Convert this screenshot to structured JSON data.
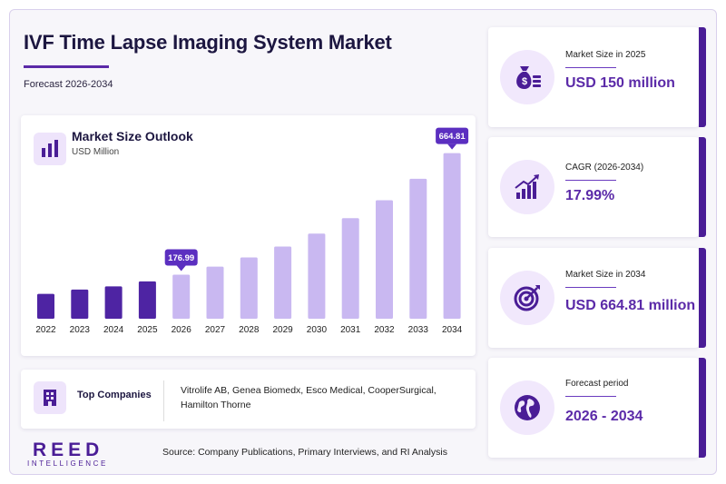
{
  "header": {
    "title": "IVF Time Lapse Imaging System Market",
    "subtitle": "Forecast 2026-2034"
  },
  "chart_data": {
    "type": "bar",
    "title": "Market Size Outlook",
    "unit": "USD Million",
    "categories": [
      "2022",
      "2023",
      "2024",
      "2025",
      "2026",
      "2027",
      "2028",
      "2029",
      "2030",
      "2031",
      "2032",
      "2033",
      "2034"
    ],
    "values": [
      100,
      117,
      130,
      150,
      176.99,
      209,
      246,
      290,
      342,
      404,
      476,
      562,
      664.81
    ],
    "labeled": [
      {
        "category": "2026",
        "label": "176.99"
      },
      {
        "category": "2034",
        "label": "664.81"
      }
    ],
    "ylim": [
      0,
      700
    ],
    "grid": false,
    "colors": {
      "historical": "#4e24a3",
      "forecast": "#c9b8f1",
      "callout": "#5b2fc0"
    }
  },
  "companies": {
    "label": "Top Companies",
    "text": "Vitrolife AB, Genea Biomedx, Esco Medical, CooperSurgical, Hamilton Thorne"
  },
  "brand": {
    "name": "REED",
    "tagline": "INTELLIGENCE"
  },
  "source": "Source: Company Publications, Primary Interviews, and RI Analysis",
  "kpis": [
    {
      "label": "Market Size in 2025",
      "value": "USD 150 million",
      "icon": "money-bag-icon"
    },
    {
      "label": "CAGR (2026-2034)",
      "value": "17.99%",
      "icon": "growth-chart-icon"
    },
    {
      "label": "Market Size in 2034",
      "value": "USD 664.81 million",
      "icon": "target-icon"
    },
    {
      "label": "Forecast period",
      "value": "2026 - 2034",
      "icon": "globe-icon"
    }
  ],
  "colors": {
    "accent": "#5b2aa8",
    "dark": "#1c1640",
    "soft": "#f1e8fc"
  }
}
